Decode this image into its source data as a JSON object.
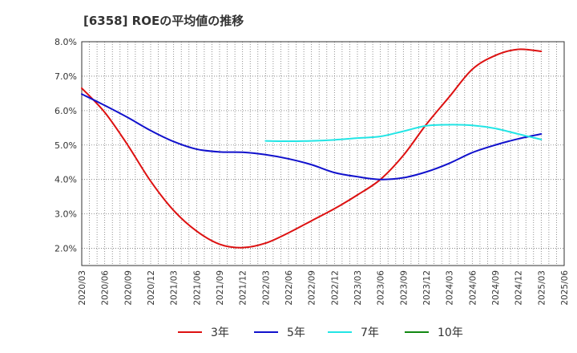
{
  "chart_data": {
    "type": "line",
    "title": "[6358]  ROEの平均値の推移",
    "xlabel": "",
    "ylabel": "",
    "ylim": [
      1.5,
      8.0
    ],
    "yticks": [
      "2.0%",
      "3.0%",
      "4.0%",
      "5.0%",
      "6.0%",
      "7.0%",
      "8.0%"
    ],
    "ytick_values": [
      2.0,
      3.0,
      4.0,
      5.0,
      6.0,
      7.0,
      8.0
    ],
    "categories": [
      "2020/03",
      "2020/06",
      "2020/09",
      "2020/12",
      "2021/03",
      "2021/06",
      "2021/09",
      "2021/12",
      "2022/03",
      "2022/06",
      "2022/09",
      "2022/12",
      "2023/03",
      "2023/06",
      "2023/09",
      "2023/12",
      "2024/03",
      "2024/06",
      "2024/09",
      "2024/12",
      "2025/03",
      "2025/06"
    ],
    "grid": true,
    "legend_position": "bottom",
    "series": [
      {
        "name": "3年",
        "color": "#dd1111",
        "values": [
          6.65,
          5.95,
          5.0,
          3.95,
          3.1,
          2.5,
          2.12,
          2.02,
          2.15,
          2.45,
          2.8,
          3.15,
          3.55,
          4.0,
          4.7,
          5.6,
          6.4,
          7.2,
          7.6,
          7.78,
          7.72,
          null
        ]
      },
      {
        "name": "5年",
        "color": "#1111cc",
        "values": [
          6.48,
          6.15,
          5.8,
          5.42,
          5.1,
          4.88,
          4.8,
          4.79,
          4.72,
          4.6,
          4.43,
          4.2,
          4.08,
          4.0,
          4.05,
          4.22,
          4.47,
          4.78,
          5.0,
          5.18,
          5.32,
          null
        ]
      },
      {
        "name": "7年",
        "color": "#22e5e5",
        "values": [
          null,
          null,
          null,
          null,
          null,
          null,
          null,
          null,
          5.12,
          5.11,
          5.12,
          5.15,
          5.2,
          5.25,
          5.4,
          5.56,
          5.59,
          5.57,
          5.48,
          5.32,
          5.16,
          null
        ]
      },
      {
        "name": "10年",
        "color": "#118811",
        "values": [
          null,
          null,
          null,
          null,
          null,
          null,
          null,
          null,
          null,
          null,
          null,
          null,
          null,
          null,
          null,
          null,
          null,
          null,
          null,
          null,
          null,
          null
        ]
      }
    ]
  }
}
